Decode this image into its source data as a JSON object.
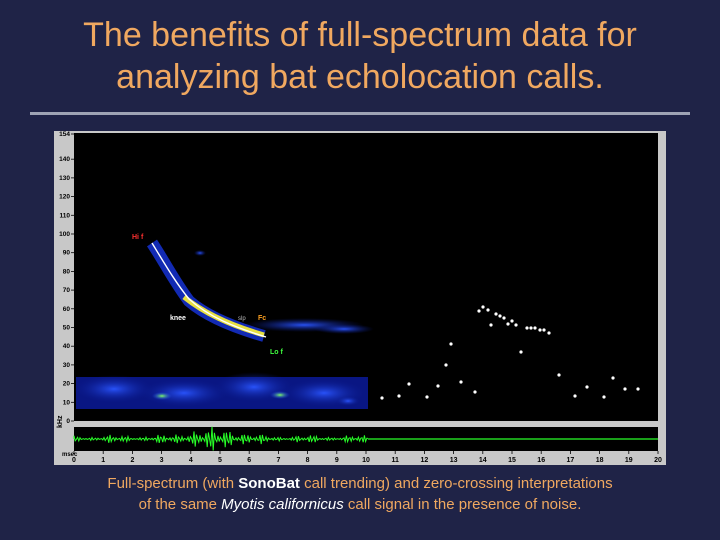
{
  "slide": {
    "title_line1": "The benefits of full-spectrum data for",
    "title_line2": "analyzing bat echolocation calls.",
    "caption_part1": "Full-spectrum (with ",
    "caption_bold": "SonoBat",
    "caption_part2": " call trending) and zero-crossing interpretations",
    "caption_part3": "of the same ",
    "caption_species": "Myotis californicus",
    "caption_part4": " call signal in the presence of noise."
  },
  "spectrogram": {
    "y_ticks": [
      "154",
      "140",
      "130",
      "120",
      "110",
      "100",
      "90",
      "80",
      "70",
      "60",
      "50",
      "40",
      "30",
      "20",
      "10",
      "0"
    ],
    "y_unit": "kHz",
    "x_unit": "msec",
    "x_ticks": [
      "0",
      "1",
      "2",
      "3",
      "4",
      "5",
      "6",
      "7",
      "8",
      "9",
      "10",
      "11",
      "12",
      "13",
      "14",
      "15",
      "16",
      "17",
      "18",
      "19",
      "20"
    ],
    "annotations": {
      "hi_f": "Hi f",
      "knee": "knee",
      "fc": "Fc",
      "lo_f": "Lo f",
      "slope": "slp"
    },
    "colors": {
      "background": "#000000",
      "noise": "#1230d0",
      "trend_line": "#ffffff",
      "zc_dots": "#ffffff",
      "waveform": "#28ff28",
      "hi_f": "#ff3030",
      "fc": "#ffa020",
      "lo_f": "#40ff40"
    }
  }
}
